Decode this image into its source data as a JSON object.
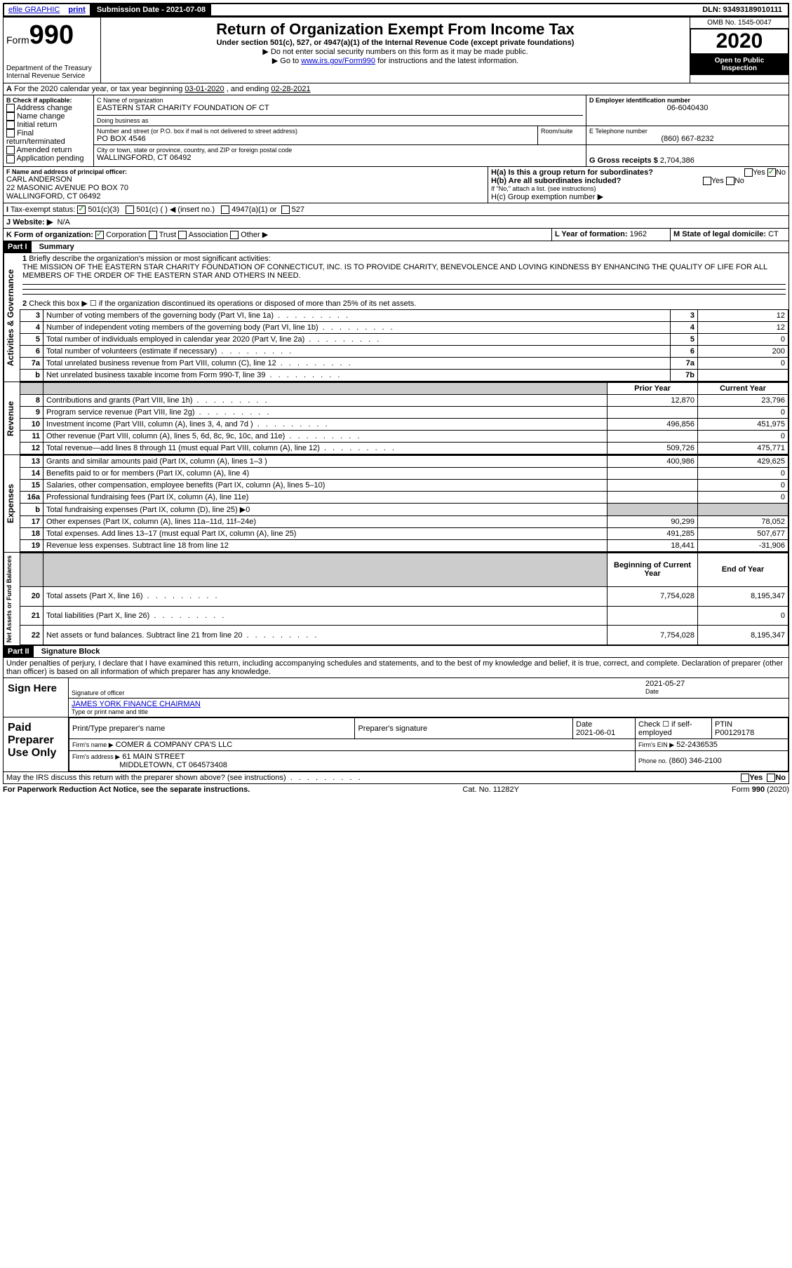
{
  "topbar": {
    "efile": "efile GRAPHIC",
    "print": "print",
    "submission_label": "Submission Date - 2021-07-08",
    "dln": "DLN: 93493189010111"
  },
  "header": {
    "form_word": "Form",
    "form_no": "990",
    "dept1": "Department of the Treasury",
    "dept2": "Internal Revenue Service",
    "title": "Return of Organization Exempt From Income Tax",
    "subtitle": "Under section 501(c), 527, or 4947(a)(1) of the Internal Revenue Code (except private foundations)",
    "warn1": "▶ Do not enter social security numbers on this form as it may be made public.",
    "warn2_pre": "▶ Go to ",
    "warn2_link": "www.irs.gov/Form990",
    "warn2_post": " for instructions and the latest information.",
    "omb": "OMB No. 1545-0047",
    "year": "2020",
    "open1": "Open to Public",
    "open2": "Inspection"
  },
  "lineA": {
    "text_pre": "For the 2020 calendar year, or tax year beginning ",
    "begin": "03-01-2020",
    "mid": " , and ending ",
    "end": "02-28-2021"
  },
  "boxB": {
    "title": "B Check if applicable:",
    "opts": [
      "Address change",
      "Name change",
      "Initial return",
      "Final return/terminated",
      "Amended return",
      "Application pending"
    ]
  },
  "boxC": {
    "label": "C Name of organization",
    "name": "EASTERN STAR CHARITY FOUNDATION OF CT",
    "dba_label": "Doing business as",
    "addr_label": "Number and street (or P.O. box if mail is not delivered to street address)",
    "room_label": "Room/suite",
    "addr": "PO BOX 4546",
    "city_label": "City or town, state or province, country, and ZIP or foreign postal code",
    "city": "WALLINGFORD, CT  06492"
  },
  "boxD": {
    "label": "D Employer identification number",
    "val": "06-6040430"
  },
  "boxE": {
    "label": "E Telephone number",
    "val": "(860) 667-8232"
  },
  "boxG": {
    "label": "G Gross receipts $ ",
    "val": "2,704,386"
  },
  "boxF": {
    "label": "F Name and address of principal officer:",
    "name": "CARL ANDERSON",
    "addr1": "22 MASONIC AVENUE PO BOX 70",
    "addr2": "WALLINGFORD, CT  06492"
  },
  "boxH": {
    "a": "H(a)  Is this a group return for subordinates?",
    "b": "H(b)  Are all subordinates included?",
    "bnote": "If \"No,\" attach a list. (see instructions)",
    "c": "H(c)  Group exemption number ▶",
    "yes": "Yes",
    "no": "No"
  },
  "boxI": {
    "label": "Tax-exempt status:",
    "o1": "501(c)(3)",
    "o2": "501(c) (   ) ◀ (insert no.)",
    "o3": "4947(a)(1) or",
    "o4": "527"
  },
  "boxJ": {
    "label": "Website: ▶",
    "val": "N/A"
  },
  "boxK": {
    "label": "K Form of organization:",
    "opts": [
      "Corporation",
      "Trust",
      "Association",
      "Other ▶"
    ]
  },
  "boxL": {
    "label": "L Year of formation: ",
    "val": "1962"
  },
  "boxM": {
    "label": "M State of legal domicile: ",
    "val": "CT"
  },
  "part1": {
    "label": "Part I",
    "title": "Summary",
    "q1": "Briefly describe the organization's mission or most significant activities:",
    "q1_text": "THE MISSION OF THE EASTERN STAR CHARITY FOUNDATION OF CONNECTICUT, INC. IS TO PROVIDE CHARITY, BENEVOLENCE AND LOVING KINDNESS BY ENHANCING THE QUALITY OF LIFE FOR ALL MEMBERS OF THE ORDER OF THE EASTERN STAR AND OTHERS IN NEED.",
    "q2": "Check this box ▶ ☐  if the organization discontinued its operations or disposed of more than 25% of its net assets.",
    "sections": {
      "activities": "Activities & Governance",
      "revenue": "Revenue",
      "expenses": "Expenses",
      "netassets": "Net Assets or Fund Balances"
    },
    "rows_gov": [
      {
        "n": "3",
        "t": "Number of voting members of the governing body (Part VI, line 1a)",
        "b": "3",
        "v": "12"
      },
      {
        "n": "4",
        "t": "Number of independent voting members of the governing body (Part VI, line 1b)",
        "b": "4",
        "v": "12"
      },
      {
        "n": "5",
        "t": "Total number of individuals employed in calendar year 2020 (Part V, line 2a)",
        "b": "5",
        "v": "0"
      },
      {
        "n": "6",
        "t": "Total number of volunteers (estimate if necessary)",
        "b": "6",
        "v": "200"
      },
      {
        "n": "7a",
        "t": "Total unrelated business revenue from Part VIII, column (C), line 12",
        "b": "7a",
        "v": "0"
      },
      {
        "n": "b",
        "t": "Net unrelated business taxable income from Form 990-T, line 39",
        "b": "7b",
        "v": ""
      }
    ],
    "col_headers": {
      "py": "Prior Year",
      "cy": "Current Year"
    },
    "rows_rev": [
      {
        "n": "8",
        "t": "Contributions and grants (Part VIII, line 1h)",
        "py": "12,870",
        "cy": "23,796"
      },
      {
        "n": "9",
        "t": "Program service revenue (Part VIII, line 2g)",
        "py": "",
        "cy": "0"
      },
      {
        "n": "10",
        "t": "Investment income (Part VIII, column (A), lines 3, 4, and 7d )",
        "py": "496,856",
        "cy": "451,975"
      },
      {
        "n": "11",
        "t": "Other revenue (Part VIII, column (A), lines 5, 6d, 8c, 9c, 10c, and 11e)",
        "py": "",
        "cy": "0"
      },
      {
        "n": "12",
        "t": "Total revenue—add lines 8 through 11 (must equal Part VIII, column (A), line 12)",
        "py": "509,726",
        "cy": "475,771"
      }
    ],
    "rows_exp": [
      {
        "n": "13",
        "t": "Grants and similar amounts paid (Part IX, column (A), lines 1–3 )",
        "py": "400,986",
        "cy": "429,625"
      },
      {
        "n": "14",
        "t": "Benefits paid to or for members (Part IX, column (A), line 4)",
        "py": "",
        "cy": "0"
      },
      {
        "n": "15",
        "t": "Salaries, other compensation, employee benefits (Part IX, column (A), lines 5–10)",
        "py": "",
        "cy": "0"
      },
      {
        "n": "16a",
        "t": "Professional fundraising fees (Part IX, column (A), line 11e)",
        "py": "",
        "cy": "0"
      },
      {
        "n": "b",
        "t": "Total fundraising expenses (Part IX, column (D), line 25) ▶0",
        "py": "GREY",
        "cy": "GREY"
      },
      {
        "n": "17",
        "t": "Other expenses (Part IX, column (A), lines 11a–11d, 11f–24e)",
        "py": "90,299",
        "cy": "78,052"
      },
      {
        "n": "18",
        "t": "Total expenses. Add lines 13–17 (must equal Part IX, column (A), line 25)",
        "py": "491,285",
        "cy": "507,677"
      },
      {
        "n": "19",
        "t": "Revenue less expenses. Subtract line 18 from line 12",
        "py": "18,441",
        "cy": "-31,906"
      }
    ],
    "col_headers2": {
      "py": "Beginning of Current Year",
      "cy": "End of Year"
    },
    "rows_net": [
      {
        "n": "20",
        "t": "Total assets (Part X, line 16)",
        "py": "7,754,028",
        "cy": "8,195,347"
      },
      {
        "n": "21",
        "t": "Total liabilities (Part X, line 26)",
        "py": "",
        "cy": "0"
      },
      {
        "n": "22",
        "t": "Net assets or fund balances. Subtract line 21 from line 20",
        "py": "7,754,028",
        "cy": "8,195,347"
      }
    ]
  },
  "part2": {
    "label": "Part II",
    "title": "Signature Block",
    "decl": "Under penalties of perjury, I declare that I have examined this return, including accompanying schedules and statements, and to the best of my knowledge and belief, it is true, correct, and complete. Declaration of preparer (other than officer) is based on all information of which preparer has any knowledge."
  },
  "sign": {
    "here": "Sign Here",
    "sig_label": "Signature of officer",
    "date_label": "Date",
    "date": "2021-05-27",
    "name": "JAMES YORK  FINANCE CHAIRMAN",
    "name_label": "Type or print name and title"
  },
  "paid": {
    "title": "Paid Preparer Use Only",
    "h1": "Print/Type preparer's name",
    "h2": "Preparer's signature",
    "h3": "Date",
    "date": "2021-06-01",
    "h4_pre": "Check ☐ if self-employed",
    "h5": "PTIN",
    "ptin": "P00129178",
    "firm_label": "Firm's name    ▶",
    "firm": "COMER & COMPANY CPA'S LLC",
    "ein_label": "Firm's EIN ▶",
    "ein": "52-2436535",
    "addr_label": "Firm's address ▶",
    "addr1": "61 MAIN STREET",
    "addr2": "MIDDLETOWN, CT  064573408",
    "phone_label": "Phone no. ",
    "phone": "(860) 346-2100"
  },
  "footer": {
    "q": "May the IRS discuss this return with the preparer shown above? (see instructions)",
    "notice": "For Paperwork Reduction Act Notice, see the separate instructions.",
    "cat": "Cat. No. 11282Y",
    "form": "Form 990 (2020)",
    "yes": "Yes",
    "no": "No"
  }
}
